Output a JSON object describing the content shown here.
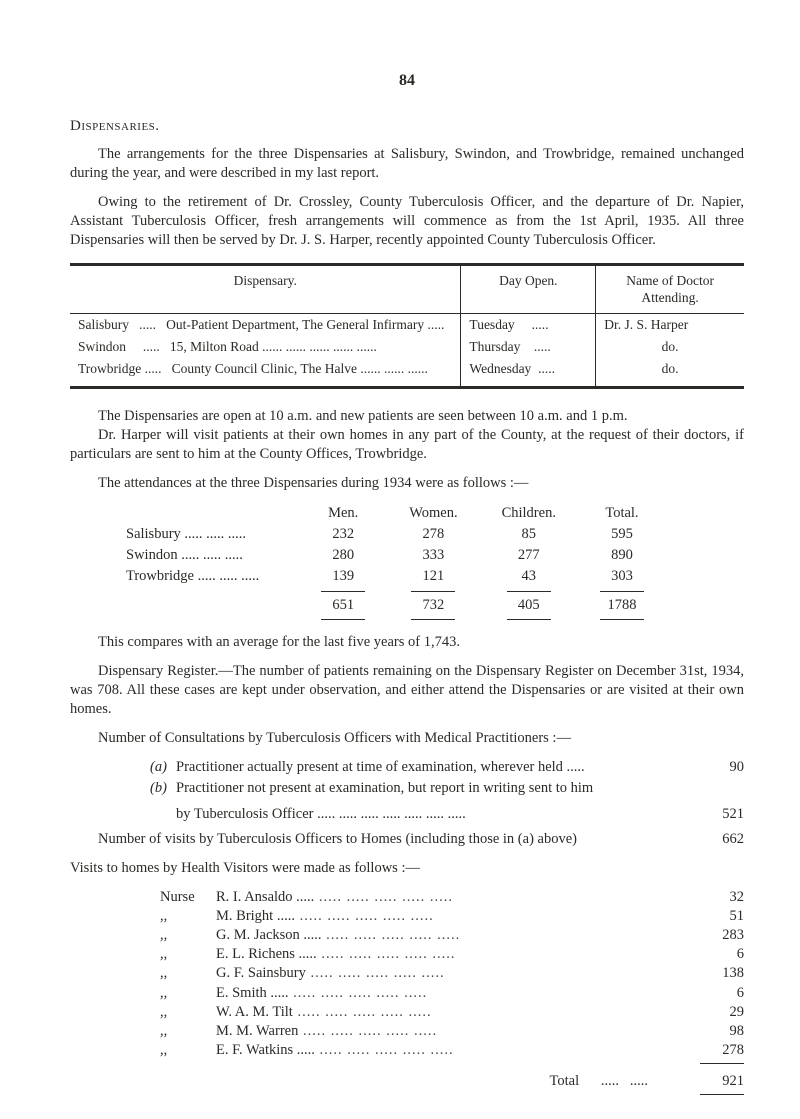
{
  "page_number": "84",
  "heading": "Dispensaries.",
  "intro_p1": "The arrangements for the three Dispensaries at Salisbury, Swindon, and Trowbridge, remained unchanged during the year, and were described in my last report.",
  "intro_p2": "Owing to the retirement of Dr. Crossley, County Tuberculosis Officer, and the departure of Dr. Napier, Assistant Tuberculosis Officer, fresh arrangements will commence as from the 1st April, 1935.  All three Dispensaries will then be served by Dr. J. S. Harper, recently appointed County Tuberculosis Officer.",
  "table_headers": {
    "dispensary": "Dispensary.",
    "day_open": "Day Open.",
    "doctor": "Name of Doctor Attending."
  },
  "table_rows": [
    {
      "loc": "Salisbury",
      "desc": "Out-Patient Department, The General Infirmary .....",
      "day": "Tuesday",
      "doctor": "Dr. J. S. Harper"
    },
    {
      "loc": "Swindon",
      "desc": "15, Milton Road      ......      ......      ......      ......      ......",
      "day": "Thursday",
      "doctor": "do."
    },
    {
      "loc": "Trowbridge",
      "desc": "County Council Clinic, The Halve ......      ......      ......",
      "day": "Wednesday",
      "doctor": "do."
    }
  ],
  "mid_p1": "The Dispensaries are open at 10 a.m. and new patients are seen between 10 a.m. and 1 p.m.",
  "mid_p2": "Dr. Harper will visit patients at their own homes in any part of the County, at the request of their doctors, if particulars are sent to him at the County Offices, Trowbridge.",
  "mid_p3": "The attendances at the three Dispensaries during 1934 were as follows :—",
  "stats": {
    "cols": [
      "",
      "Men.",
      "Women.",
      "Children.",
      "Total."
    ],
    "rows": [
      {
        "label": "Salisbury     .....   .....   .....",
        "men": "232",
        "women": "278",
        "children": "85",
        "total": "595"
      },
      {
        "label": "Swindon      .....   .....   .....",
        "men": "280",
        "women": "333",
        "children": "277",
        "total": "890"
      },
      {
        "label": "Trowbridge .....   .....   .....",
        "men": "139",
        "women": "121",
        "children": "43",
        "total": "303"
      }
    ],
    "totals": {
      "men": "651",
      "women": "732",
      "children": "405",
      "total": "1788"
    }
  },
  "compare_p": "This compares with an average for the last five years of 1,743.",
  "register_p": "Dispensary Register.—The number of patients remaining on the Dispensary Register on December 31st, 1934, was 708. All these cases are kept under observation, and either attend the Dispensaries or are visited at their own homes.",
  "consult_p": "Number of Consultations by Tuberculosis Officers with Medical Practitioners :—",
  "sub_a": {
    "tag": "(a)",
    "text": "Practitioner actually present at time of examination, wherever held  .....",
    "val": "90"
  },
  "sub_b": {
    "tag": "(b)",
    "text": "Practitioner not present at examination, but report in writing sent to him",
    "text2": "by Tuberculosis Officer        .....      .....      .....      .....      .....      .....      .....",
    "val": "521"
  },
  "visits_homes_line": {
    "text": "Number of visits by Tuberculosis Officers to Homes (including those in (a) above)",
    "val": "662"
  },
  "visits_intro": "Visits to homes by Health Visitors were made as follows :—",
  "visits": [
    {
      "pre": "Nurse",
      "name": "R. I. Ansaldo  .....",
      "val": "32"
    },
    {
      "pre": ",,",
      "name": "M. Bright        .....",
      "val": "51"
    },
    {
      "pre": ",,",
      "name": "G. M. Jackson .....",
      "val": "283"
    },
    {
      "pre": ",,",
      "name": "E. L. Richens  .....",
      "val": "6"
    },
    {
      "pre": ",,",
      "name": "G. F. Sainsbury",
      "val": "138"
    },
    {
      "pre": ",,",
      "name": "E. Smith          .....",
      "val": "6"
    },
    {
      "pre": ",,",
      "name": "W. A. M. Tilt",
      "val": "29"
    },
    {
      "pre": ",,",
      "name": "M. M. Warren",
      "val": "98"
    },
    {
      "pre": ",,",
      "name": "E. F. Watkins .....",
      "val": "278"
    }
  ],
  "visits_total_label": "Total",
  "visits_total_val": "921"
}
